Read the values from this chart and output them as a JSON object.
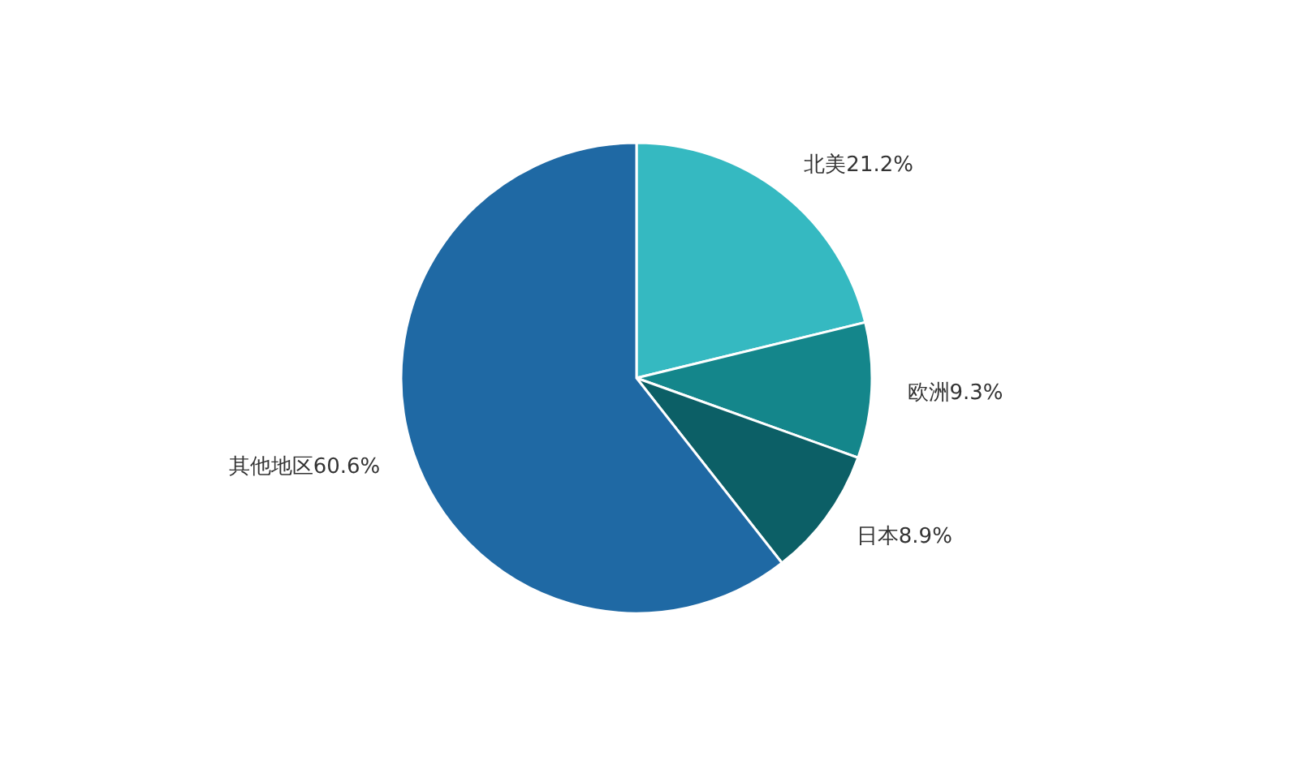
{
  "chart_data": {
    "type": "pie",
    "categories": [
      "北美",
      "欧洲",
      "日本",
      "其他地区"
    ],
    "values": [
      21.2,
      9.3,
      8.9,
      60.6
    ],
    "value_labels": [
      "21.2%",
      "9.3%",
      "8.9%",
      "60.6%"
    ],
    "colors": [
      "#35b9c1",
      "#14868b",
      "#0c5f66",
      "#1f69a4"
    ],
    "legend": false
  }
}
